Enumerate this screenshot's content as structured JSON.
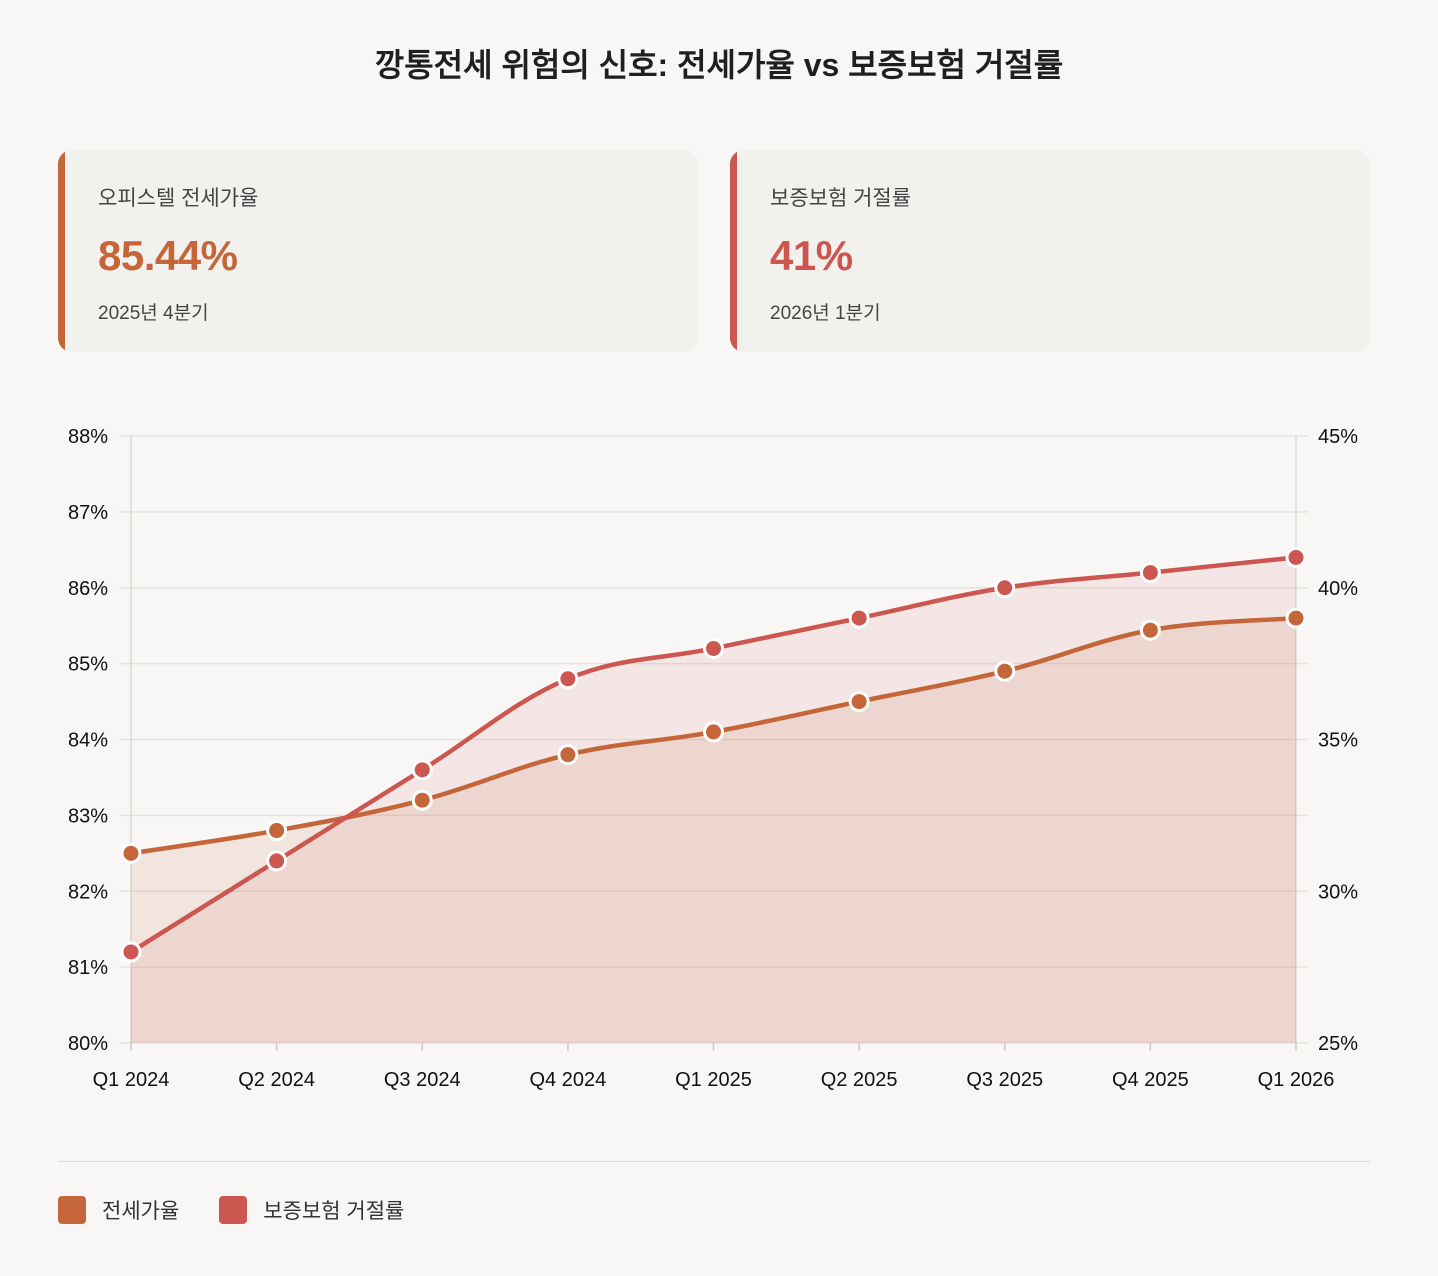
{
  "title": "깡통전세 위험의 신호: 전세가율 vs 보증보험 거절률",
  "cards": [
    {
      "label": "오피스텔 전세가율",
      "value": "85.44%",
      "period": "2025년 4분기",
      "color": "#c4663a"
    },
    {
      "label": "보증보험 거절률",
      "value": "41%",
      "period": "2026년 1분기",
      "color": "#cc5650"
    }
  ],
  "legend": [
    {
      "label": "전세가율",
      "color": "#c4663a"
    },
    {
      "label": "보증보험 거절률",
      "color": "#cc5650"
    }
  ],
  "chart_data": {
    "type": "line",
    "categories": [
      "Q1 2024",
      "Q2 2024",
      "Q3 2024",
      "Q4 2024",
      "Q1 2025",
      "Q2 2025",
      "Q3 2025",
      "Q4 2025",
      "Q1 2026"
    ],
    "series": [
      {
        "name": "전세가율",
        "axis": "left",
        "color": "#c4663a",
        "fill": true,
        "values": [
          82.5,
          82.8,
          83.2,
          83.8,
          84.1,
          84.5,
          84.9,
          85.44,
          85.6
        ]
      },
      {
        "name": "보증보험 거절률",
        "axis": "right",
        "color": "#cc5650",
        "fill": true,
        "values": [
          28,
          31,
          34,
          37,
          38,
          39,
          40,
          40.5,
          41
        ]
      }
    ],
    "y_left": {
      "min": 80,
      "max": 88,
      "ticks": [
        "80%",
        "81%",
        "82%",
        "83%",
        "84%",
        "85%",
        "86%",
        "87%",
        "88%"
      ]
    },
    "y_right": {
      "min": 25,
      "max": 45,
      "ticks": [
        "25%",
        "30%",
        "35%",
        "40%",
        "45%"
      ]
    },
    "grid": true,
    "legend_position": "bottom-left"
  }
}
